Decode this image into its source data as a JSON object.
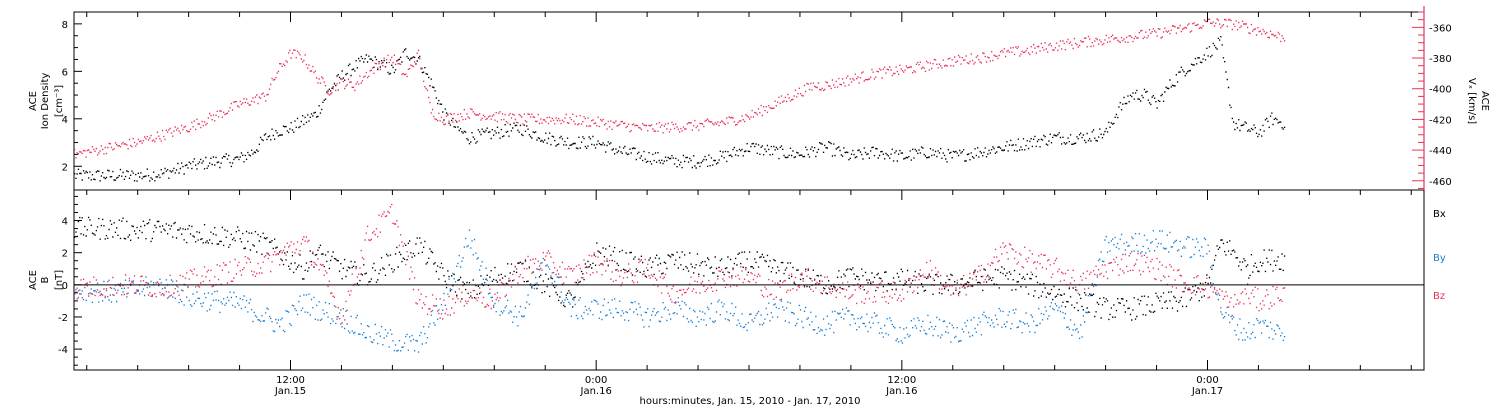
{
  "colors": {
    "black": "#000000",
    "red": "#e8325a",
    "blue": "#1a7fd4"
  },
  "xaxis": {
    "label": "hours:minutes, Jan. 15, 2010 - Jan. 17, 2010",
    "ticks": [
      {
        "hour": 12,
        "time": "12:00",
        "date": "Jan.15"
      },
      {
        "hour": 24,
        "time": "0:00",
        "date": "Jan.16"
      },
      {
        "hour": 36,
        "time": "12:00",
        "date": "Jan.16"
      },
      {
        "hour": 48,
        "time": "0:00",
        "date": "Jan.17"
      }
    ],
    "range_hours": [
      3.5,
      56.5
    ]
  },
  "chart_data": [
    {
      "type": "scatter",
      "panel": "top",
      "ylabel_left": [
        "ACE",
        "Ion Density",
        "[cm⁻³]"
      ],
      "ylabel_right": [
        "ACE",
        "Vₓ [km/s]"
      ],
      "ylim_left": [
        1,
        8.5
      ],
      "yticks_left": [
        2,
        4,
        6,
        8
      ],
      "ylim_right": [
        -466,
        -350
      ],
      "yticks_right": [
        -360,
        -380,
        -400,
        -420,
        -440,
        -460
      ],
      "series": [
        {
          "axis": "left",
          "color_key": "black",
          "x": [
            3.5,
            5,
            6,
            7,
            8,
            9,
            10,
            10.5,
            11,
            11.5,
            12,
            12.5,
            13,
            13.5,
            14,
            14.5,
            15,
            15.5,
            16,
            16.5,
            17,
            17.5,
            18,
            18.5,
            19,
            20,
            21,
            22,
            23,
            24,
            25,
            26,
            27,
            28,
            29,
            30,
            31,
            32,
            33,
            34,
            35,
            36,
            37,
            38,
            39,
            40,
            41,
            42,
            43,
            44,
            44.5,
            45,
            45.5,
            46,
            46.5,
            47,
            47.5,
            48,
            48.5,
            49,
            49.5,
            50,
            50.5,
            51
          ],
          "y": [
            1.6,
            1.6,
            1.6,
            1.7,
            2.0,
            2.2,
            2.3,
            2.6,
            3.2,
            3.5,
            3.6,
            3.9,
            4.2,
            5.2,
            5.8,
            6.2,
            6.5,
            6.3,
            6.0,
            6.8,
            6.5,
            5.5,
            4.2,
            3.6,
            3.2,
            3.4,
            3.6,
            3.2,
            3.0,
            3.0,
            2.6,
            2.4,
            2.2,
            2.2,
            2.4,
            2.8,
            2.6,
            2.5,
            2.8,
            2.4,
            2.6,
            2.4,
            2.6,
            2.4,
            2.6,
            2.8,
            3.0,
            3.2,
            3.2,
            3.4,
            4.4,
            5.0,
            5.0,
            4.6,
            5.4,
            6.0,
            6.4,
            6.8,
            7.2,
            3.8,
            3.6,
            3.4,
            4.0,
            3.8
          ]
        },
        {
          "axis": "right",
          "color_key": "red",
          "x": [
            3.5,
            5,
            6,
            7,
            8,
            9,
            10,
            11,
            11.5,
            12,
            12.5,
            13,
            13.5,
            14,
            14.5,
            15,
            15.5,
            16,
            16.5,
            17,
            17.5,
            18,
            18.5,
            19,
            20,
            21,
            22,
            23,
            24,
            25,
            26,
            27,
            28,
            29,
            30,
            31,
            32,
            32.5,
            33,
            34,
            35,
            36,
            37,
            38,
            39,
            40,
            41,
            42,
            43,
            44,
            45,
            46,
            47,
            48,
            49,
            50,
            51
          ],
          "y": [
            -443,
            -438,
            -435,
            -430,
            -425,
            -418,
            -410,
            -405,
            -388,
            -377,
            -380,
            -392,
            -401,
            -396,
            -398,
            -390,
            -384,
            -380,
            -392,
            -378,
            -415,
            -420,
            -418,
            -416,
            -418,
            -420,
            -420,
            -420,
            -422,
            -424,
            -426,
            -425,
            -424,
            -422,
            -418,
            -410,
            -402,
            -398,
            -398,
            -394,
            -390,
            -388,
            -385,
            -382,
            -380,
            -377,
            -375,
            -372,
            -370,
            -368,
            -366,
            -364,
            -361,
            -357,
            -358,
            -362,
            -367
          ]
        }
      ]
    },
    {
      "type": "scatter",
      "panel": "bottom",
      "ylabel_left": [
        "ACE",
        "B",
        "[nT]"
      ],
      "ylim": [
        -5.3,
        5.9
      ],
      "yticks": [
        4,
        2,
        0,
        -2,
        -4
      ],
      "zero_line": true,
      "legend": [
        "Bx",
        "By",
        "Bz"
      ],
      "series": [
        {
          "name": "Bx",
          "color_key": "black",
          "x": [
            3.5,
            5,
            6,
            7,
            8,
            9,
            10,
            11,
            11.5,
            12,
            12.5,
            13,
            14,
            15,
            16,
            17,
            18,
            19,
            20,
            21,
            22,
            23,
            24,
            25,
            26,
            27,
            28,
            29,
            30,
            31,
            32,
            33,
            34,
            35,
            36,
            37,
            38,
            39,
            40,
            41,
            42,
            43,
            44,
            45,
            46,
            47,
            48,
            48.5,
            49,
            49.5,
            50,
            51
          ],
          "y": [
            3.5,
            3.5,
            3.4,
            3.4,
            3.3,
            3.1,
            2.9,
            2.5,
            2.0,
            1.5,
            1.0,
            2.0,
            1.0,
            0.5,
            1.5,
            2.5,
            0.5,
            -0.5,
            0.5,
            1.0,
            0.0,
            -1.0,
            2.0,
            1.5,
            1.0,
            1.5,
            1.2,
            1.0,
            1.5,
            1.0,
            0.5,
            0.0,
            0.5,
            0.2,
            0.3,
            0.0,
            0.0,
            0.3,
            0.5,
            0.0,
            -0.5,
            -1.0,
            -1.5,
            -1.5,
            -1.2,
            -1.0,
            0.0,
            2.6,
            2.0,
            1.0,
            1.5,
            1.6
          ]
        },
        {
          "name": "By",
          "color_key": "blue",
          "x": [
            3.5,
            5,
            6,
            7,
            8,
            9,
            10,
            11,
            11.5,
            12,
            12.5,
            13,
            14,
            15,
            16,
            17,
            18,
            19,
            20,
            21,
            22,
            23,
            24,
            25,
            26,
            27,
            28,
            29,
            30,
            31,
            32,
            33,
            34,
            35,
            36,
            37,
            38,
            39,
            40,
            41,
            42,
            43,
            44,
            45,
            46,
            47,
            48,
            48.5,
            49,
            49.5,
            50,
            51
          ],
          "y": [
            -0.3,
            -0.5,
            -0.3,
            0.0,
            -0.8,
            -1.0,
            -1.2,
            -2.0,
            -2.5,
            -2.0,
            -1.0,
            -1.5,
            -2.0,
            -3.0,
            -3.5,
            -3.8,
            -1.0,
            3.0,
            -1.0,
            -2.0,
            1.5,
            -1.5,
            -1.5,
            -1.5,
            -2.0,
            -1.5,
            -2.0,
            -1.5,
            -2.5,
            -1.5,
            -2.0,
            -2.5,
            -2.0,
            -2.5,
            -3.0,
            -2.5,
            -3.0,
            -2.5,
            -2.0,
            -2.5,
            -1.5,
            -3.0,
            2.5,
            2.5,
            2.8,
            2.4,
            2.2,
            -1.5,
            -2.5,
            -3.0,
            -2.5,
            -3.1
          ]
        },
        {
          "name": "Bz",
          "color_key": "red",
          "x": [
            3.5,
            5,
            6,
            7,
            8,
            9,
            10,
            11,
            11.5,
            12,
            12.5,
            13,
            14,
            15,
            16,
            17,
            18,
            19,
            20,
            21,
            22,
            23,
            24,
            25,
            26,
            27,
            28,
            29,
            30,
            31,
            32,
            33,
            34,
            35,
            36,
            37,
            38,
            39,
            40,
            41,
            42,
            43,
            44,
            45,
            46,
            47,
            48,
            48.5,
            49,
            49.5,
            50,
            51
          ],
          "y": [
            -0.2,
            -0.1,
            0.0,
            -0.2,
            0.2,
            0.6,
            1.0,
            1.3,
            1.8,
            2.3,
            2.6,
            1.5,
            -2.0,
            3.0,
            4.5,
            -1.0,
            -1.5,
            -0.5,
            -1.0,
            1.0,
            1.5,
            0.5,
            1.5,
            0.5,
            1.0,
            -0.5,
            0.0,
            0.5,
            0.5,
            -0.5,
            0.5,
            0.0,
            -0.5,
            -0.5,
            -0.5,
            1.0,
            -0.5,
            0.5,
            2.2,
            1.5,
            1.0,
            0.0,
            1.0,
            1.5,
            1.0,
            0.2,
            -0.2,
            -0.8,
            -1.3,
            -0.5,
            -1.0,
            -0.5
          ]
        }
      ]
    }
  ]
}
